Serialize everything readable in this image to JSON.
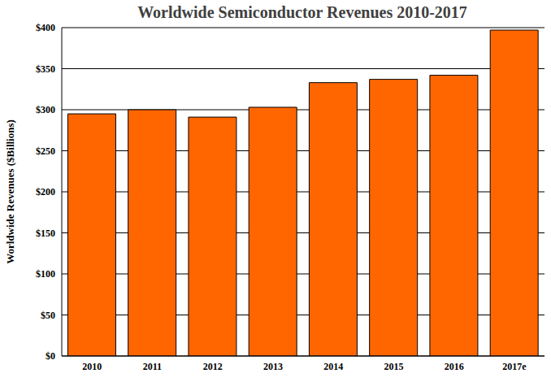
{
  "chart_data": {
    "type": "bar",
    "title": "Worldwide Semiconductor Revenues 2010-2017",
    "y_label": "Worldwide Revenues ($Billions)",
    "categories": [
      "2010",
      "2011",
      "2012",
      "2013",
      "2014",
      "2015",
      "2016",
      "2017e"
    ],
    "values": [
      295,
      300,
      291,
      303,
      333,
      337,
      342,
      397
    ],
    "color": "#ff6600",
    "ylim": [
      0,
      400
    ],
    "yticks": [
      {
        "value": 0,
        "label": "$0"
      },
      {
        "value": 50,
        "label": "$50"
      },
      {
        "value": 100,
        "label": "$100"
      },
      {
        "value": 150,
        "label": "$150"
      },
      {
        "value": 200,
        "label": "$200"
      },
      {
        "value": 250,
        "label": "$250"
      },
      {
        "value": 300,
        "label": "$300"
      },
      {
        "value": 350,
        "label": "$350"
      },
      {
        "value": 400,
        "label": "$400"
      }
    ],
    "grid": true
  }
}
